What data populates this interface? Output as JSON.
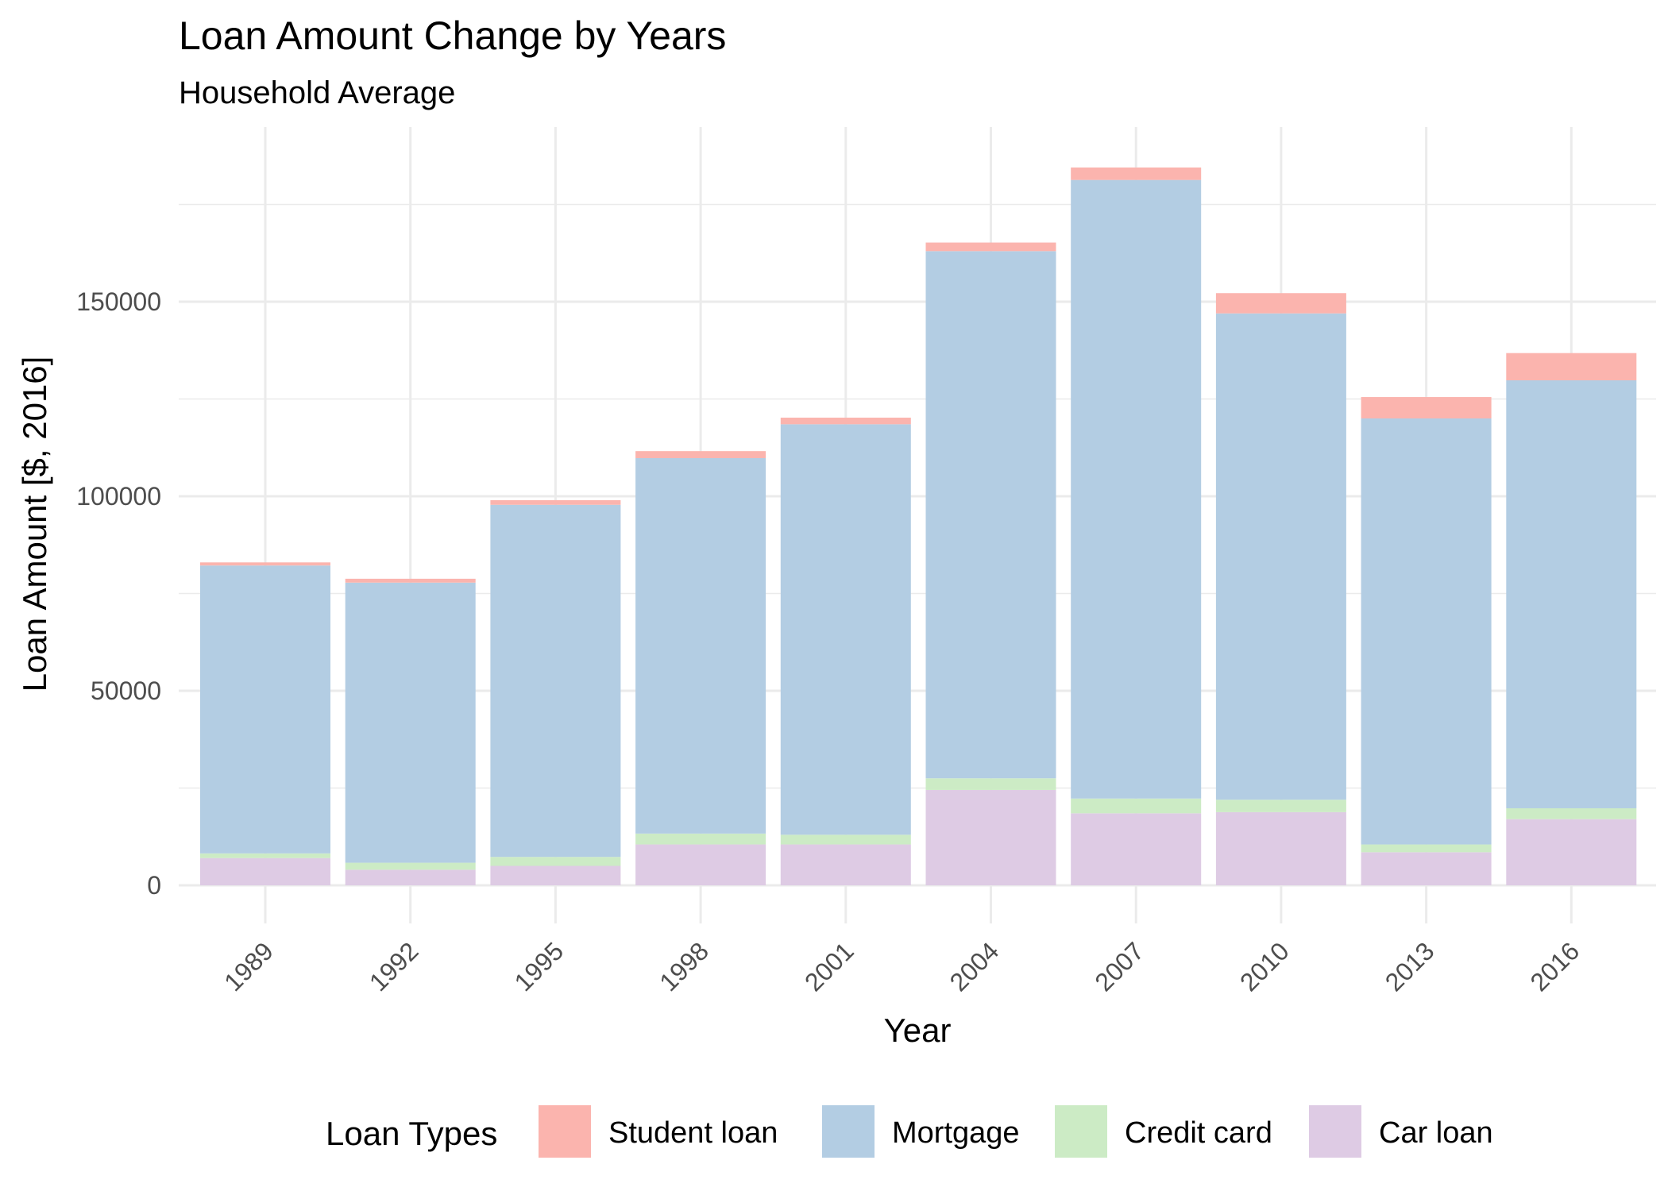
{
  "chart_data": {
    "type": "bar",
    "stacked": true,
    "title": "Loan Amount Change by Years",
    "subtitle": "Household Average",
    "xlabel": "Year",
    "ylabel": "Loan Amount [$, 2016]",
    "categories": [
      "1989",
      "1992",
      "1995",
      "1998",
      "2001",
      "2004",
      "2007",
      "2010",
      "2013",
      "2016"
    ],
    "ylim": [
      0,
      193000
    ],
    "yticks": [
      0,
      50000,
      100000,
      150000
    ],
    "ytick_labels": [
      "0",
      "50000",
      "100000",
      "150000"
    ],
    "grid": true,
    "legend": {
      "title": "Loan Types",
      "position": "bottom"
    },
    "series": [
      {
        "name": "Car loan",
        "color": "#DECBE4",
        "values": [
          7000,
          4000,
          5000,
          10500,
          10500,
          24500,
          18500,
          18800,
          8500,
          17000
        ]
      },
      {
        "name": "Credit card",
        "color": "#CCEBC5",
        "values": [
          1200,
          1800,
          2300,
          2800,
          2500,
          3000,
          3800,
          3200,
          2000,
          2800
        ]
      },
      {
        "name": "Mortgage",
        "color": "#B3CDE3",
        "values": [
          74000,
          72000,
          90500,
          96500,
          105500,
          135500,
          159000,
          125000,
          109500,
          110000
        ]
      },
      {
        "name": "Student loan",
        "color": "#FBB4AE",
        "values": [
          800,
          1000,
          1200,
          1800,
          1700,
          2200,
          3200,
          5200,
          5500,
          7000
        ]
      }
    ],
    "legend_order": [
      "Student loan",
      "Mortgage",
      "Credit card",
      "Car loan"
    ]
  }
}
